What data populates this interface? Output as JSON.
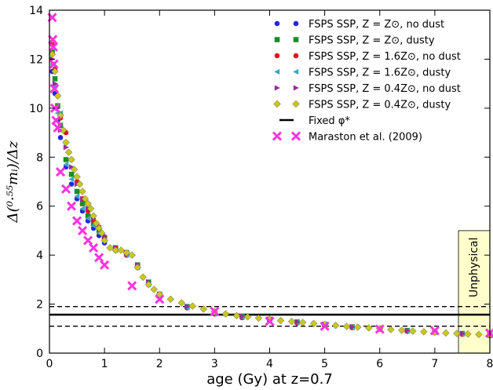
{
  "chart_data": {
    "type": "scatter",
    "xlabel": "age (Gy) at z=0.7",
    "ylabel": "Δ(⁰·⁵⁵mᵢ)/Δz",
    "xlim": [
      0,
      8
    ],
    "ylim": [
      0,
      14
    ],
    "x_ticks": [
      "0",
      "1",
      "2",
      "3",
      "4",
      "5",
      "6",
      "7",
      "8"
    ],
    "y_ticks": [
      "0",
      "2",
      "4",
      "6",
      "8",
      "10",
      "12",
      "14"
    ],
    "grid": false,
    "legend_position": "top-right",
    "annotation": {
      "text": "Unphysical",
      "x_range": [
        7.43,
        8.0
      ],
      "y_range": [
        0,
        5.0
      ],
      "color": "#ffffcc"
    },
    "reference_lines": [
      {
        "name": "Fixed φ*",
        "y": 1.57,
        "style": "solid"
      },
      {
        "y": 1.9,
        "style": "dashed"
      },
      {
        "y": 1.1,
        "style": "dashed"
      }
    ],
    "series": [
      {
        "name": "FSPS SSP, Z = Z⊙, no dust",
        "marker": "circle",
        "color": "#1f2ad8",
        "x": [
          0.05,
          0.1,
          0.15,
          0.2,
          0.3,
          0.4,
          0.5,
          0.6,
          0.7,
          0.8,
          0.9,
          1.0,
          1.2,
          1.4,
          1.6,
          1.8,
          2.0,
          2.5,
          3.0,
          3.5,
          4.0,
          4.5,
          5.0,
          5.5,
          6.0,
          6.5,
          7.0,
          7.5,
          8.0
        ],
        "y": [
          11.5,
          10.6,
          9.5,
          8.8,
          7.6,
          6.9,
          6.3,
          5.8,
          5.4,
          5.1,
          4.8,
          4.5,
          4.2,
          4.0,
          3.5,
          2.8,
          2.3,
          1.85,
          1.6,
          1.45,
          1.35,
          1.25,
          1.15,
          1.05,
          0.98,
          0.9,
          0.85,
          0.78,
          0.72
        ]
      },
      {
        "name": "FSPS SSP, Z = Z⊙, dusty",
        "marker": "square",
        "color": "#1c8c2a",
        "x": [
          0.05,
          0.1,
          0.15,
          0.2,
          0.3,
          0.4,
          0.5,
          0.6,
          0.7,
          0.8,
          0.9,
          1.0,
          1.2,
          1.4,
          1.6,
          1.8,
          2.0,
          2.5,
          3.0,
          3.5,
          4.0,
          4.5,
          5.0,
          5.5,
          6.0,
          6.5,
          7.0,
          7.5,
          8.0
        ],
        "y": [
          12.3,
          11.2,
          10.1,
          9.3,
          7.9,
          7.3,
          6.6,
          6.1,
          5.6,
          5.3,
          5.0,
          4.7,
          4.3,
          4.1,
          3.6,
          2.9,
          2.4,
          1.9,
          1.65,
          1.5,
          1.38,
          1.27,
          1.17,
          1.07,
          1.0,
          0.92,
          0.86,
          0.8,
          0.74
        ]
      },
      {
        "name": "FSPS SSP, Z = 1.6Z⊙, no dust",
        "marker": "circle",
        "color": "#e01a1a",
        "x": [
          0.05,
          0.1,
          0.15,
          0.2,
          0.3,
          0.4,
          0.5,
          0.6,
          0.7,
          0.8,
          0.9,
          1.0,
          1.2,
          1.4,
          1.6,
          1.8,
          2.0,
          2.5,
          3.0,
          3.5,
          4.0,
          4.5,
          5.0,
          5.5,
          6.0,
          6.5,
          7.0,
          7.5,
          8.0
        ],
        "y": [
          12.6,
          11.6,
          10.5,
          9.6,
          9.0,
          7.9,
          7.0,
          6.3,
          5.8,
          5.4,
          5.1,
          4.7,
          4.3,
          4.0,
          3.5,
          2.8,
          2.3,
          1.85,
          1.6,
          1.45,
          1.33,
          1.23,
          1.13,
          1.04,
          0.97,
          0.89,
          0.84,
          0.77,
          0.71
        ]
      },
      {
        "name": "FSPS SSP, Z = 1.6Z⊙, dusty",
        "marker": "triangle-left",
        "color": "#3aa6c0",
        "x": [
          0.05,
          0.1,
          0.15,
          0.2,
          0.3,
          0.4,
          0.5,
          0.6,
          0.7,
          0.8,
          0.9,
          1.0,
          1.2,
          1.4,
          1.6,
          1.8,
          2.0,
          2.5,
          3.0,
          3.5,
          4.0,
          4.5,
          5.0,
          5.5,
          6.0,
          6.5,
          7.0,
          7.5,
          8.0
        ],
        "y": [
          11.8,
          10.9,
          9.8,
          9.8,
          7.7,
          7.1,
          6.4,
          5.9,
          5.5,
          5.2,
          4.9,
          4.6,
          4.2,
          4.0,
          3.5,
          2.8,
          2.3,
          1.85,
          1.6,
          1.46,
          1.35,
          1.25,
          1.15,
          1.05,
          0.98,
          0.9,
          0.85,
          0.78,
          0.72
        ]
      },
      {
        "name": "FSPS SSP, Z = 0.4Z⊙, no dust",
        "marker": "triangle-right",
        "color": "#9b2aa0",
        "x": [
          0.05,
          0.1,
          0.15,
          0.2,
          0.3,
          0.4,
          0.5,
          0.6,
          0.7,
          0.8,
          0.9,
          1.0,
          1.2,
          1.4,
          1.6,
          1.8,
          2.0,
          2.5,
          3.0,
          3.5,
          4.0,
          4.5,
          5.0,
          5.5,
          6.0,
          6.5,
          7.0,
          7.5,
          8.0
        ],
        "y": [
          12.0,
          11.0,
          10.0,
          9.1,
          8.4,
          7.6,
          6.9,
          6.3,
          5.9,
          5.5,
          5.2,
          4.8,
          4.3,
          4.1,
          3.6,
          2.9,
          2.4,
          1.9,
          1.65,
          1.5,
          1.38,
          1.27,
          1.17,
          1.07,
          1.0,
          0.92,
          0.86,
          0.8,
          0.74
        ]
      },
      {
        "name": "FSPS SSP, Z = 0.4Z⊙, dusty",
        "marker": "diamond",
        "color": "#c8c81e",
        "x": [
          0.05,
          0.1,
          0.15,
          0.2,
          0.25,
          0.3,
          0.35,
          0.4,
          0.45,
          0.5,
          0.55,
          0.6,
          0.65,
          0.7,
          0.75,
          0.8,
          0.85,
          0.9,
          0.95,
          1.0,
          1.1,
          1.2,
          1.3,
          1.4,
          1.5,
          1.6,
          1.7,
          1.8,
          1.9,
          2.0,
          2.2,
          2.4,
          2.6,
          2.8,
          3.0,
          3.2,
          3.4,
          3.6,
          3.8,
          4.0,
          4.2,
          4.4,
          4.6,
          4.8,
          5.0,
          5.2,
          5.4,
          5.6,
          5.8,
          6.0,
          6.2,
          6.4,
          6.6,
          6.8,
          7.0,
          7.2,
          7.4,
          7.6,
          7.8,
          8.0
        ],
        "y": [
          12.2,
          11.5,
          10.5,
          9.7,
          9.1,
          8.6,
          8.2,
          7.9,
          7.5,
          7.2,
          6.9,
          6.6,
          6.3,
          6.1,
          5.9,
          5.6,
          5.3,
          5.1,
          4.9,
          4.6,
          4.3,
          4.2,
          4.2,
          4.1,
          4.0,
          3.5,
          3.1,
          2.8,
          2.6,
          2.4,
          2.2,
          2.05,
          1.92,
          1.8,
          1.7,
          1.6,
          1.53,
          1.48,
          1.43,
          1.38,
          1.33,
          1.29,
          1.25,
          1.21,
          1.17,
          1.13,
          1.09,
          1.06,
          1.03,
          1.0,
          0.96,
          0.93,
          0.9,
          0.87,
          0.85,
          0.82,
          0.8,
          0.78,
          0.76,
          0.74
        ]
      },
      {
        "name": "Fixed φ*",
        "marker": "line",
        "color": "#000000"
      },
      {
        "name": "Maraston et al. (2009)",
        "marker": "x",
        "color": "#ff33e0",
        "x": [
          0.05,
          0.06,
          0.07,
          0.08,
          0.09,
          0.1,
          0.12,
          0.15,
          0.2,
          0.3,
          0.4,
          0.5,
          0.6,
          0.7,
          0.8,
          0.9,
          1.0,
          1.5,
          2.0,
          3.0,
          4.0,
          5.0,
          6.0,
          7.0,
          8.0
        ],
        "y": [
          13.7,
          12.8,
          12.5,
          11.8,
          10.8,
          10.0,
          9.5,
          9.2,
          7.4,
          6.7,
          6.0,
          5.4,
          5.0,
          4.6,
          4.3,
          3.9,
          3.6,
          2.75,
          2.2,
          1.7,
          1.3,
          1.1,
          0.98,
          0.92,
          0.82
        ]
      }
    ]
  }
}
